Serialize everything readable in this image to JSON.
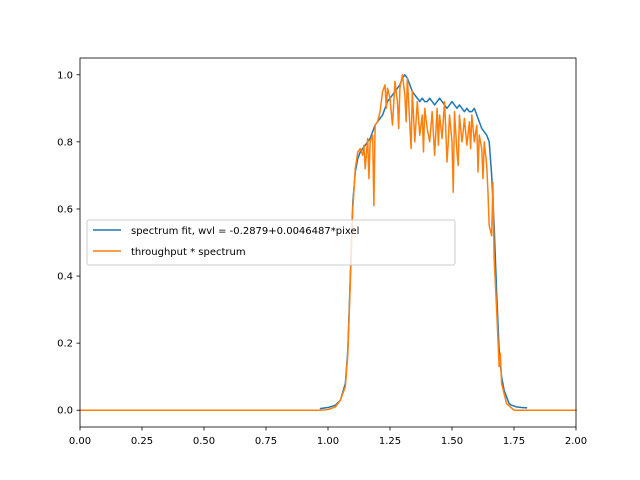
{
  "chart_data": {
    "type": "line",
    "title": "",
    "xlabel": "",
    "ylabel": "",
    "xlim": [
      0.0,
      2.0
    ],
    "ylim": [
      -0.05,
      1.05
    ],
    "xticks": [
      "0.00",
      "0.25",
      "0.50",
      "0.75",
      "1.00",
      "1.25",
      "1.50",
      "1.75",
      "2.00"
    ],
    "yticks": [
      "0.0",
      "0.2",
      "0.4",
      "0.6",
      "0.8",
      "1.0"
    ],
    "grid": false,
    "legend_position": "center-left",
    "series": [
      {
        "name": "spectrum fit, wvl = -0.2879+0.0046487*pixel",
        "color": "#1f77b4",
        "x": [
          0.97,
          1.0,
          1.03,
          1.05,
          1.07,
          1.08,
          1.09,
          1.1,
          1.11,
          1.12,
          1.13,
          1.14,
          1.15,
          1.16,
          1.17,
          1.18,
          1.19,
          1.2,
          1.21,
          1.22,
          1.23,
          1.24,
          1.25,
          1.26,
          1.27,
          1.28,
          1.29,
          1.3,
          1.31,
          1.32,
          1.33,
          1.34,
          1.35,
          1.36,
          1.37,
          1.38,
          1.39,
          1.4,
          1.41,
          1.42,
          1.43,
          1.44,
          1.45,
          1.46,
          1.47,
          1.48,
          1.49,
          1.5,
          1.51,
          1.52,
          1.53,
          1.54,
          1.55,
          1.56,
          1.57,
          1.58,
          1.59,
          1.6,
          1.61,
          1.62,
          1.63,
          1.64,
          1.65,
          1.66,
          1.67,
          1.68,
          1.69,
          1.7,
          1.71,
          1.72,
          1.73,
          1.74,
          1.76,
          1.78,
          1.8
        ],
        "y": [
          0.005,
          0.008,
          0.015,
          0.03,
          0.08,
          0.18,
          0.4,
          0.62,
          0.71,
          0.75,
          0.77,
          0.78,
          0.79,
          0.8,
          0.81,
          0.83,
          0.85,
          0.86,
          0.87,
          0.88,
          0.9,
          0.92,
          0.93,
          0.94,
          0.95,
          0.96,
          0.97,
          0.99,
          1.0,
          0.99,
          0.97,
          0.95,
          0.94,
          0.93,
          0.92,
          0.93,
          0.92,
          0.92,
          0.93,
          0.92,
          0.91,
          0.92,
          0.93,
          0.92,
          0.91,
          0.9,
          0.91,
          0.92,
          0.91,
          0.9,
          0.91,
          0.9,
          0.89,
          0.9,
          0.89,
          0.89,
          0.9,
          0.88,
          0.86,
          0.84,
          0.83,
          0.82,
          0.8,
          0.7,
          0.55,
          0.35,
          0.18,
          0.1,
          0.06,
          0.04,
          0.02,
          0.015,
          0.01,
          0.008,
          0.007
        ]
      },
      {
        "name": "throughput * spectrum",
        "color": "#ff7f0e",
        "x": [
          0.0,
          0.97,
          1.0,
          1.03,
          1.05,
          1.07,
          1.08,
          1.09,
          1.1,
          1.11,
          1.12,
          1.13,
          1.14,
          1.145,
          1.15,
          1.16,
          1.165,
          1.17,
          1.18,
          1.185,
          1.19,
          1.2,
          1.21,
          1.22,
          1.23,
          1.235,
          1.24,
          1.25,
          1.26,
          1.27,
          1.28,
          1.285,
          1.29,
          1.3,
          1.31,
          1.315,
          1.32,
          1.33,
          1.335,
          1.34,
          1.35,
          1.355,
          1.36,
          1.37,
          1.38,
          1.385,
          1.39,
          1.4,
          1.41,
          1.42,
          1.43,
          1.44,
          1.445,
          1.45,
          1.46,
          1.47,
          1.48,
          1.485,
          1.49,
          1.5,
          1.505,
          1.51,
          1.52,
          1.525,
          1.53,
          1.54,
          1.545,
          1.55,
          1.56,
          1.57,
          1.575,
          1.58,
          1.59,
          1.6,
          1.605,
          1.61,
          1.62,
          1.625,
          1.63,
          1.64,
          1.645,
          1.65,
          1.66,
          1.665,
          1.67,
          1.68,
          1.69,
          1.695,
          1.7,
          1.72,
          1.75,
          2.0
        ],
        "y": [
          0.0,
          0.0,
          0.002,
          0.01,
          0.03,
          0.07,
          0.17,
          0.38,
          0.6,
          0.72,
          0.77,
          0.78,
          0.76,
          0.79,
          0.72,
          0.81,
          0.69,
          0.8,
          0.82,
          0.61,
          0.85,
          0.86,
          0.89,
          0.95,
          0.97,
          0.9,
          0.96,
          0.93,
          0.85,
          0.98,
          0.92,
          0.84,
          0.96,
          1.0,
          0.94,
          0.86,
          0.99,
          0.85,
          0.78,
          0.95,
          0.8,
          0.86,
          0.92,
          0.82,
          0.88,
          0.77,
          0.9,
          0.84,
          0.8,
          0.89,
          0.76,
          0.9,
          0.79,
          0.88,
          0.81,
          0.92,
          0.74,
          0.8,
          0.88,
          0.8,
          0.65,
          0.89,
          0.77,
          0.73,
          0.88,
          0.8,
          0.83,
          0.87,
          0.79,
          0.86,
          0.78,
          0.88,
          0.8,
          0.85,
          0.71,
          0.82,
          0.78,
          0.69,
          0.8,
          0.73,
          0.65,
          0.55,
          0.52,
          0.68,
          0.45,
          0.3,
          0.13,
          0.17,
          0.08,
          0.02,
          0.0,
          0.0
        ]
      }
    ]
  }
}
